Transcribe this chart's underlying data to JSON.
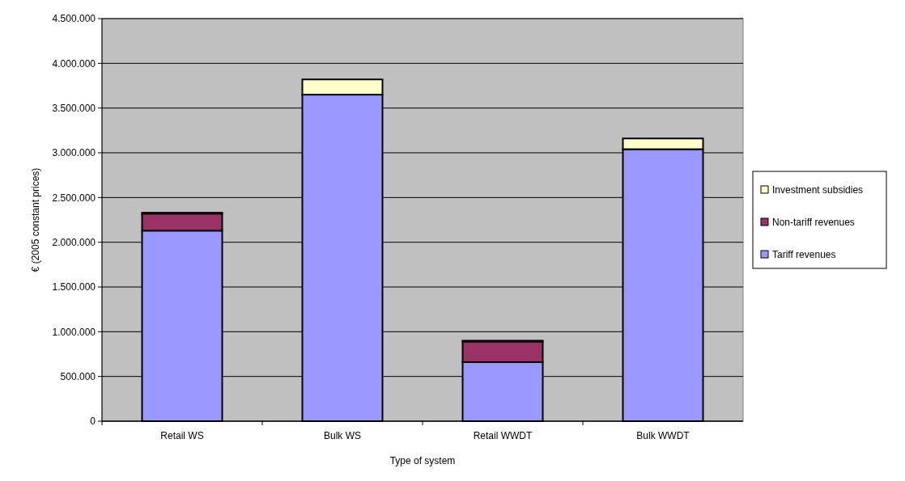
{
  "chart_data": {
    "type": "bar",
    "stacked": true,
    "xlabel": "Type of system",
    "ylabel": "€ (2005 constant prices)",
    "categories": [
      "Retail WS",
      "Bulk WS",
      "Retail WWDT",
      "Bulk WWDT"
    ],
    "series": [
      {
        "name": "Tariff revenues",
        "color": "#9999ff",
        "values": [
          2130000,
          3650000,
          660000,
          3040000
        ]
      },
      {
        "name": "Non-tariff revenues",
        "color": "#993366",
        "values": [
          190000,
          0,
          230000,
          0
        ]
      },
      {
        "name": "Investment subsidies",
        "color": "#ffffcc",
        "values": [
          10000,
          170000,
          10000,
          120000
        ]
      }
    ],
    "ylim": [
      0,
      4500000
    ],
    "yticks": [
      {
        "value": 0,
        "label": "0"
      },
      {
        "value": 500000,
        "label": "500.000"
      },
      {
        "value": 1000000,
        "label": "1.000.000"
      },
      {
        "value": 1500000,
        "label": "1.500.000"
      },
      {
        "value": 2000000,
        "label": "2.000.000"
      },
      {
        "value": 2500000,
        "label": "2.500.000"
      },
      {
        "value": 3000000,
        "label": "3.000.000"
      },
      {
        "value": 3500000,
        "label": "3.500.000"
      },
      {
        "value": 4000000,
        "label": "4.000.000"
      },
      {
        "value": 4500000,
        "label": "4.500.000"
      }
    ],
    "grid": "y",
    "legend": "right"
  }
}
